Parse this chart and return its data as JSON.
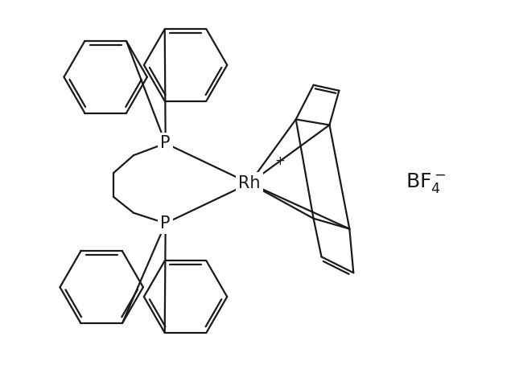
{
  "bg_color": "#ffffff",
  "bond_color": "#1a1a1a",
  "line_width": 1.6,
  "fig_width": 6.4,
  "fig_height": 4.54,
  "dpi": 100,
  "rh_label": "Rh",
  "p1_label": "P",
  "p2_label": "P",
  "plus_label": "+",
  "bf4_label": "BF$_4^-$",
  "rh_fontsize": 15,
  "p_fontsize": 15,
  "plus_fontsize": 11,
  "bf4_fontsize": 18
}
